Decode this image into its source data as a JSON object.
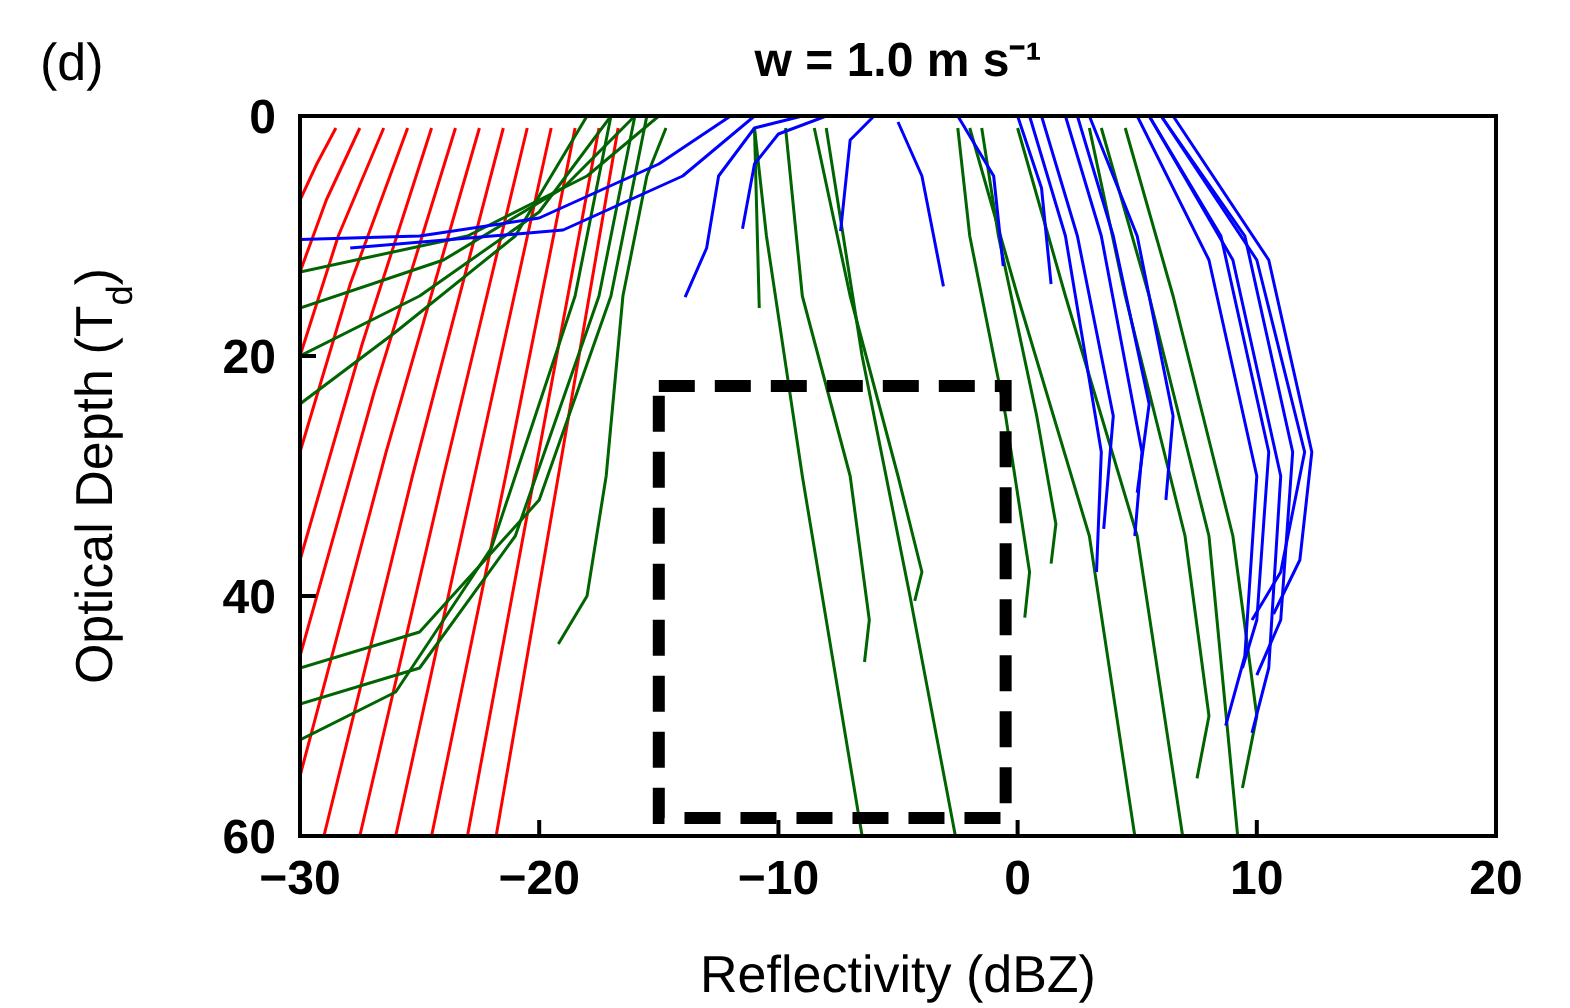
{
  "chart_data": {
    "type": "line",
    "title": "w = 1.0 m s⁻¹",
    "xlabel": "Reflectivity (dBZ)",
    "ylabel": "Optical Depth (T$_{d}$)",
    "annotations": [
      "(d)"
    ],
    "xlim": [
      -30,
      20
    ],
    "xticks": [
      -30,
      -20,
      -10,
      0,
      10,
      20
    ],
    "ylim": [
      60,
      0
    ],
    "yticks": [
      0,
      20,
      40,
      60
    ],
    "grid": false,
    "marker": "none",
    "line_style": "solid",
    "series": [
      {
        "color": "#ff0000",
        "x": [
          -16.7,
          -19.2,
          -21.8
        ],
        "values": [
          1,
          30,
          60
        ]
      },
      {
        "color": "#ff0000",
        "x": [
          -17.5,
          -20.2,
          -23
        ],
        "values": [
          1,
          30,
          60
        ]
      },
      {
        "color": "#ff0000",
        "x": [
          -18.5,
          -21.4,
          -24.5
        ],
        "values": [
          1,
          30,
          60
        ]
      },
      {
        "color": "#ff0000",
        "x": [
          -19.5,
          -22.7,
          -26
        ],
        "values": [
          1,
          30,
          60
        ]
      },
      {
        "color": "#ff0000",
        "x": [
          -20.5,
          -24,
          -27.5
        ],
        "values": [
          1,
          30,
          60
        ]
      },
      {
        "color": "#ff0000",
        "x": [
          -21.5,
          -25.3,
          -29
        ],
        "values": [
          1,
          30,
          60
        ]
      },
      {
        "color": "#ff0000",
        "x": [
          -22.5,
          -26.4,
          -30
        ],
        "values": [
          1,
          28,
          55
        ]
      },
      {
        "color": "#ff0000",
        "x": [
          -23.5,
          -26.9,
          -30
        ],
        "values": [
          1,
          23,
          45
        ]
      },
      {
        "color": "#ff0000",
        "x": [
          -24.5,
          -27.4,
          -30
        ],
        "values": [
          1,
          19,
          37
        ]
      },
      {
        "color": "#ff0000",
        "x": [
          -25.5,
          -27.9,
          -30
        ],
        "values": [
          1,
          14,
          28
        ]
      },
      {
        "color": "#ff0000",
        "x": [
          -26.5,
          -28.4,
          -30
        ],
        "values": [
          1,
          10,
          20
        ]
      },
      {
        "color": "#ff0000",
        "x": [
          -27.5,
          -28.9,
          -30
        ],
        "values": [
          1,
          7,
          13
        ]
      },
      {
        "color": "#ff0000",
        "x": [
          -28.5,
          -29.3,
          -30
        ],
        "values": [
          1,
          4,
          7
        ]
      },
      {
        "color": "#006400",
        "x": [
          -15,
          -18,
          -23,
          -30
        ],
        "values": [
          0,
          5,
          10,
          13
        ]
      },
      {
        "color": "#006400",
        "x": [
          -16,
          -19,
          -24,
          -30
        ],
        "values": [
          0,
          6,
          12,
          16
        ]
      },
      {
        "color": "#006400",
        "x": [
          -17,
          -20,
          -25,
          -30
        ],
        "values": [
          0,
          8,
          15,
          20
        ]
      },
      {
        "color": "#006400",
        "x": [
          -18,
          -21,
          -26,
          -30
        ],
        "values": [
          0,
          10,
          18,
          24
        ]
      },
      {
        "color": "#006400",
        "x": [
          -15.5,
          -17,
          -20,
          -25,
          -30
        ],
        "values": [
          0,
          15,
          32,
          43,
          46
        ]
      },
      {
        "color": "#006400",
        "x": [
          -16,
          -17.5,
          -21,
          -25,
          -30
        ],
        "values": [
          0,
          15,
          35,
          46,
          49
        ]
      },
      {
        "color": "#006400",
        "x": [
          -17,
          -18.5,
          -22,
          -26,
          -30
        ],
        "values": [
          0,
          15,
          36,
          48,
          52
        ]
      },
      {
        "color": "#006400",
        "x": [
          -14.7,
          -15.5,
          -16.5,
          -17.2,
          -18,
          -19.2
        ],
        "values": [
          1,
          5,
          15,
          30,
          40,
          44
        ]
      },
      {
        "color": "#006400",
        "x": [
          -11,
          -10.8
        ],
        "values": [
          1,
          16
        ]
      },
      {
        "color": "#006400",
        "x": [
          -11,
          -10.5,
          -9,
          -6.5
        ],
        "values": [
          1,
          10,
          30,
          60
        ]
      },
      {
        "color": "#006400",
        "x": [
          -9.7,
          -9,
          -7,
          -6.2,
          -6.4
        ],
        "values": [
          1,
          15,
          30,
          42,
          45.5
        ]
      },
      {
        "color": "#006400",
        "x": [
          -8.5,
          -7,
          -5,
          -4,
          -4.3
        ],
        "values": [
          1,
          15,
          30,
          38,
          40.4
        ]
      },
      {
        "color": "#006400",
        "x": [
          -8,
          -6.5,
          -4.5,
          -2.6
        ],
        "values": [
          1,
          20,
          40,
          60
        ]
      },
      {
        "color": "#006400",
        "x": [
          -2.5,
          -2,
          -0.5,
          0.5,
          0.3
        ],
        "values": [
          1,
          10,
          25,
          38,
          41.8
        ]
      },
      {
        "color": "#006400",
        "x": [
          -1.5,
          -0.8,
          0.8,
          1.6,
          1.4
        ],
        "values": [
          1,
          10,
          25,
          34,
          37.3
        ]
      },
      {
        "color": "#006400",
        "x": [
          -2,
          0,
          3,
          4.9
        ],
        "values": [
          1,
          15,
          35,
          60
        ]
      },
      {
        "color": "#006400",
        "x": [
          0,
          2,
          5,
          6.9
        ],
        "values": [
          1,
          15,
          35,
          60
        ]
      },
      {
        "color": "#006400",
        "x": [
          3,
          4.5,
          7,
          8,
          7.5
        ],
        "values": [
          1,
          15,
          35,
          50,
          55.2
        ]
      },
      {
        "color": "#006400",
        "x": [
          3.5,
          5.5,
          8,
          9.2
        ],
        "values": [
          1,
          15,
          35,
          60
        ]
      },
      {
        "color": "#006400",
        "x": [
          4.5,
          6.5,
          9,
          10,
          9.4
        ],
        "values": [
          1,
          15,
          35,
          50,
          56
        ]
      },
      {
        "color": "#0000ff",
        "x": [
          -12,
          -15,
          -20,
          -25,
          -30
        ],
        "values": [
          0,
          4,
          8.5,
          10,
          10.3
        ]
      },
      {
        "color": "#0000ff",
        "x": [
          -11,
          -14,
          -19,
          -27.9
        ],
        "values": [
          0,
          5,
          9.5,
          11
        ]
      },
      {
        "color": "#0000ff",
        "x": [
          -9,
          -11,
          -12.5,
          -13,
          -13.9
        ],
        "values": [
          0,
          1,
          5,
          11,
          15.1
        ]
      },
      {
        "color": "#0000ff",
        "x": [
          -8,
          -10,
          -11,
          -11.5
        ],
        "values": [
          0,
          1.5,
          4,
          9.4
        ]
      },
      {
        "color": "#0000ff",
        "x": [
          -6,
          -7,
          -7.4
        ],
        "values": [
          0,
          2,
          9.6
        ]
      },
      {
        "color": "#0000ff",
        "x": [
          -5,
          -4,
          -3.1
        ],
        "values": [
          0.5,
          5,
          14.2
        ]
      },
      {
        "color": "#0000ff",
        "x": [
          -2.5,
          -1,
          -0.6
        ],
        "values": [
          0,
          5,
          12.5
        ]
      },
      {
        "color": "#0000ff",
        "x": [
          0,
          1,
          1.4
        ],
        "values": [
          0,
          6,
          14
        ]
      },
      {
        "color": "#0000ff",
        "x": [
          0.5,
          2,
          3.5,
          3.3
        ],
        "values": [
          0,
          10,
          28,
          38
        ]
      },
      {
        "color": "#0000ff",
        "x": [
          1,
          2.5,
          4,
          3.6
        ],
        "values": [
          0,
          10,
          25,
          34.4
        ]
      },
      {
        "color": "#0000ff",
        "x": [
          2,
          3.5,
          5.2,
          4.9
        ],
        "values": [
          0,
          10,
          28,
          35
        ]
      },
      {
        "color": "#0000ff",
        "x": [
          2.5,
          4,
          5.5,
          5
        ],
        "values": [
          0,
          10,
          24,
          31.4
        ]
      },
      {
        "color": "#0000ff",
        "x": [
          3,
          5,
          6.5,
          6.2
        ],
        "values": [
          0,
          10,
          25,
          32
        ]
      },
      {
        "color": "#0000ff",
        "x": [
          5,
          8,
          10,
          9.5,
          8.7
        ],
        "values": [
          0,
          12,
          30,
          45,
          50.8
        ]
      },
      {
        "color": "#0000ff",
        "x": [
          5.5,
          9,
          11,
          10.5,
          9.8
        ],
        "values": [
          0,
          12,
          30,
          46,
          51.4
        ]
      },
      {
        "color": "#0000ff",
        "x": [
          5.5,
          8.5,
          10.5,
          10,
          9.4
        ],
        "values": [
          0,
          10,
          28,
          42,
          46
        ]
      },
      {
        "color": "#0000ff",
        "x": [
          6,
          9.5,
          11.5,
          11,
          10
        ],
        "values": [
          0,
          10,
          28,
          42,
          46.6
        ]
      },
      {
        "color": "#0000ff",
        "x": [
          6,
          10,
          12,
          11,
          9.8
        ],
        "values": [
          0,
          12,
          28,
          38,
          42
        ]
      },
      {
        "color": "#0000ff",
        "x": [
          6.5,
          10.5,
          12.3,
          11.8,
          10.7
        ],
        "values": [
          0,
          12,
          28,
          37,
          41.5
        ]
      }
    ]
  }
}
